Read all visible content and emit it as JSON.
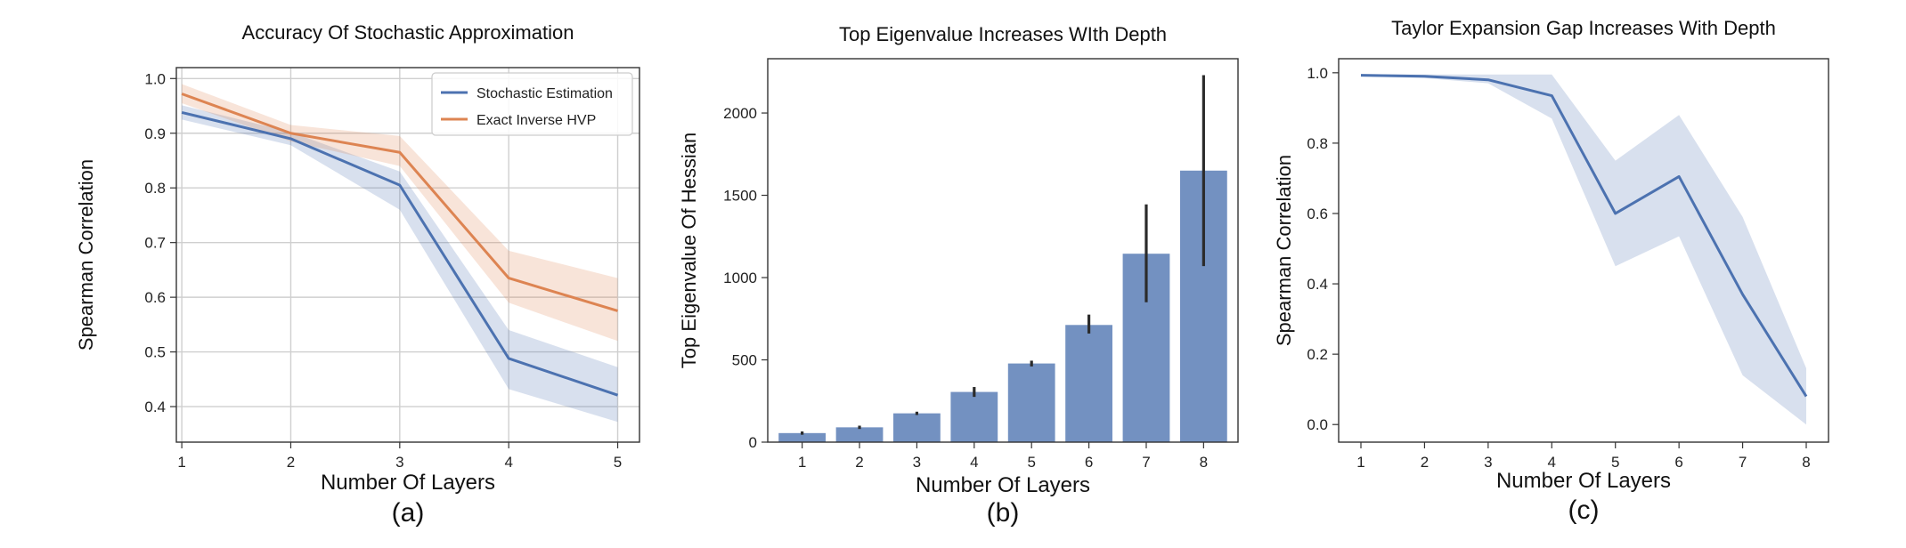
{
  "chart_data": [
    {
      "type": "line",
      "title": "Accuracy Of Stochastic Approximation",
      "xlabel": "Number Of Layers",
      "ylabel": "Spearman Correlation",
      "caption": "(a)",
      "x": [
        1,
        2,
        3,
        4,
        5
      ],
      "xlim": [
        0.95,
        5.2
      ],
      "ylim": [
        0.335,
        1.02
      ],
      "xticks": [
        1,
        2,
        3,
        4,
        5
      ],
      "yticks": [
        0.4,
        0.5,
        0.6,
        0.7,
        0.8,
        0.9,
        1.0
      ],
      "grid": true,
      "legend": "top-right",
      "series": [
        {
          "name": "Stochastic Estimation",
          "color": "#4c72b0",
          "values": [
            0.938,
            0.89,
            0.805,
            0.488,
            0.421
          ],
          "lower": [
            0.925,
            0.878,
            0.76,
            0.432,
            0.372
          ],
          "upper": [
            0.951,
            0.902,
            0.83,
            0.54,
            0.472
          ]
        },
        {
          "name": "Exact Inverse HVP",
          "color": "#dd8452",
          "values": [
            0.972,
            0.9,
            0.865,
            0.635,
            0.575
          ],
          "lower": [
            0.955,
            0.885,
            0.84,
            0.59,
            0.52
          ],
          "upper": [
            0.99,
            0.915,
            0.895,
            0.685,
            0.635
          ]
        }
      ]
    },
    {
      "type": "bar",
      "title": "Top Eigenvalue Increases WIth Depth",
      "xlabel": "Number Of Layers",
      "ylabel": "Top Eigenvalue Of Hessian",
      "caption": "(b)",
      "categories": [
        "1",
        "2",
        "3",
        "4",
        "5",
        "6",
        "7",
        "8"
      ],
      "values": [
        55,
        90,
        175,
        305,
        478,
        712,
        1145,
        1650
      ],
      "err_low": [
        45,
        80,
        165,
        275,
        460,
        660,
        850,
        1070
      ],
      "err_high": [
        65,
        100,
        185,
        335,
        495,
        775,
        1445,
        2230
      ],
      "color": "#4c72b0",
      "ylim": [
        0,
        2330
      ],
      "yticks": [
        0,
        500,
        1000,
        1500,
        2000
      ],
      "grid": false
    },
    {
      "type": "line",
      "title": "Taylor Expansion Gap Increases With Depth",
      "xlabel": "Number Of Layers",
      "ylabel": "Spearman Correlation",
      "caption": "(c)",
      "x": [
        1,
        2,
        3,
        4,
        5,
        6,
        7,
        8
      ],
      "xlim": [
        0.65,
        8.35
      ],
      "ylim": [
        -0.05,
        1.04
      ],
      "xticks": [
        1,
        2,
        3,
        4,
        5,
        6,
        7,
        8
      ],
      "yticks": [
        0.0,
        0.2,
        0.4,
        0.6,
        0.8,
        1.0
      ],
      "grid": false,
      "series": [
        {
          "color": "#4c72b0",
          "values": [
            0.993,
            0.99,
            0.98,
            0.935,
            0.6,
            0.705,
            0.37,
            0.08
          ],
          "lower": [
            0.99,
            0.985,
            0.97,
            0.87,
            0.45,
            0.535,
            0.14,
            0.0
          ],
          "upper": [
            0.996,
            0.995,
            0.995,
            0.995,
            0.75,
            0.88,
            0.59,
            0.16
          ]
        }
      ]
    }
  ]
}
